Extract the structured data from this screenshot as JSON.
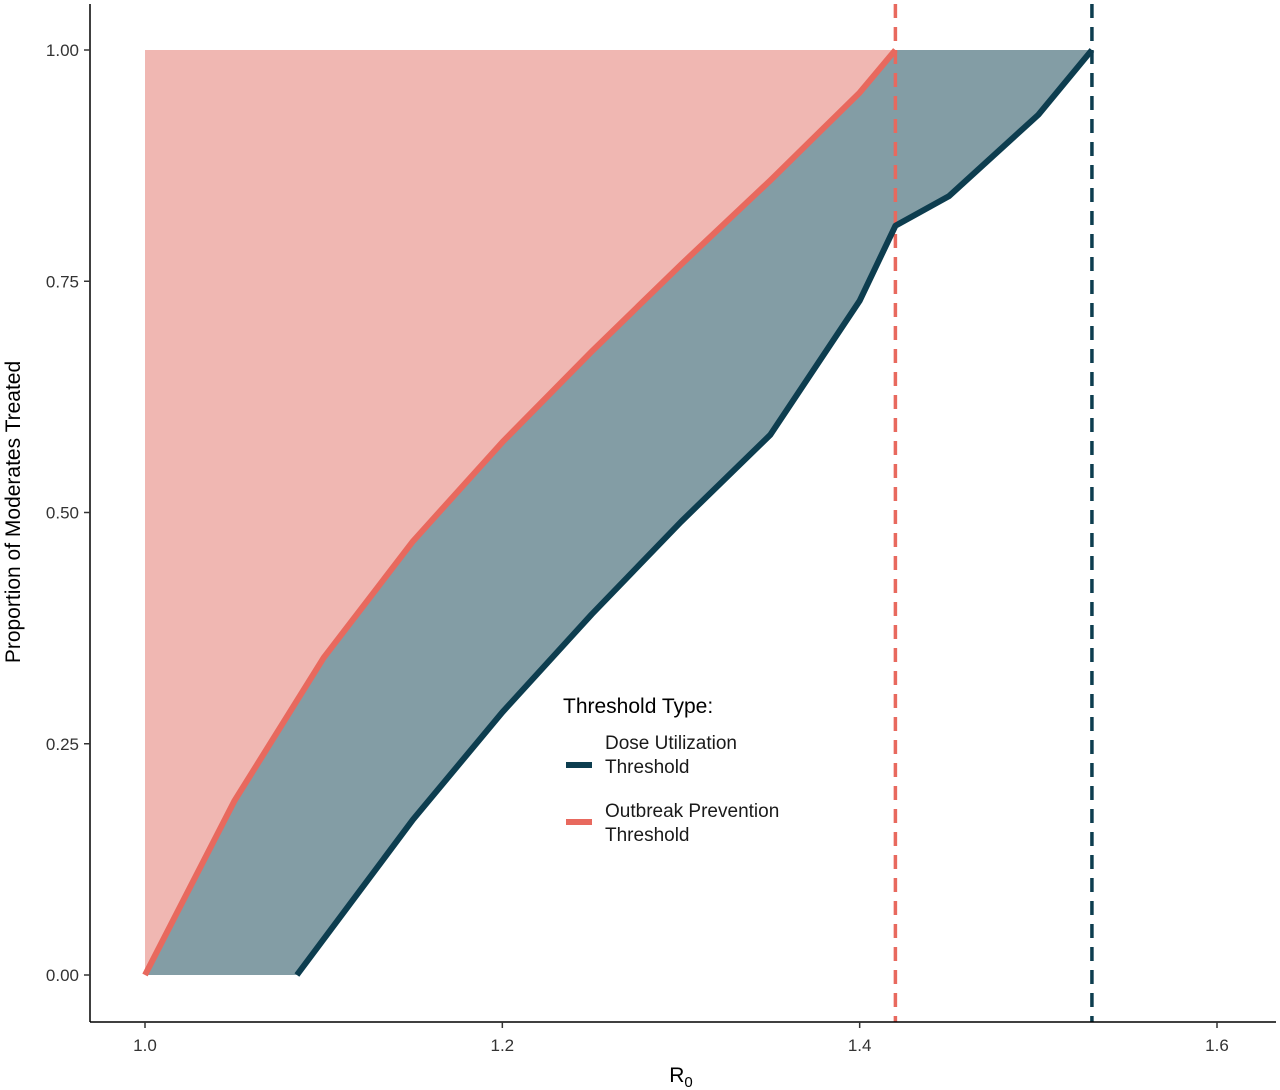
{
  "chart_data": {
    "type": "area",
    "xlabel": "R",
    "xlabel_subscript": "0",
    "ylabel": "Proportion of Moderates Treated",
    "xlim": [
      0.975,
      1.63
    ],
    "ylim": [
      -0.05,
      1.05
    ],
    "x_ticks": [
      1.0,
      1.2,
      1.4,
      1.6
    ],
    "x_tick_labels": [
      "1.0",
      "1.2",
      "1.4",
      "1.6"
    ],
    "y_ticks": [
      0.0,
      0.25,
      0.5,
      0.75,
      1.0
    ],
    "y_tick_labels": [
      "0.00",
      "0.25",
      "0.50",
      "0.75",
      "1.00"
    ],
    "grid": false,
    "legend": {
      "title": "Threshold Type:",
      "placement": "inside-bottom-center",
      "entries": [
        {
          "line1": "Dose Utilization",
          "line2": "Threshold",
          "color": "#0d3d4f"
        },
        {
          "line1": "Outbreak Prevention",
          "line2": "Threshold",
          "color": "#e8695e"
        }
      ]
    },
    "series": [
      {
        "name": "Outbreak Prevention Threshold",
        "color": "#e8695e",
        "x": [
          1.0,
          1.05,
          1.1,
          1.15,
          1.2,
          1.25,
          1.3,
          1.35,
          1.4,
          1.42
        ],
        "y": [
          0.0,
          0.188,
          0.343,
          0.469,
          0.576,
          0.674,
          0.768,
          0.859,
          0.954,
          1.0
        ],
        "vline_x": 1.42
      },
      {
        "name": "Dose Utilization Threshold",
        "color": "#0d3d4f",
        "x": [
          1.085,
          1.15,
          1.2,
          1.25,
          1.3,
          1.35,
          1.4,
          1.42,
          1.45,
          1.5,
          1.53
        ],
        "y": [
          0.0,
          0.168,
          0.284,
          0.39,
          0.49,
          0.584,
          0.729,
          0.81,
          0.842,
          0.93,
          1.0
        ],
        "vline_x": 1.53
      }
    ],
    "fills": [
      {
        "between": "y=1 and Outbreak Prevention Threshold",
        "color": "#f0b7b2"
      },
      {
        "between": "Outbreak Prevention Threshold and Dose Utilization Threshold",
        "color": "#839da5"
      }
    ]
  }
}
